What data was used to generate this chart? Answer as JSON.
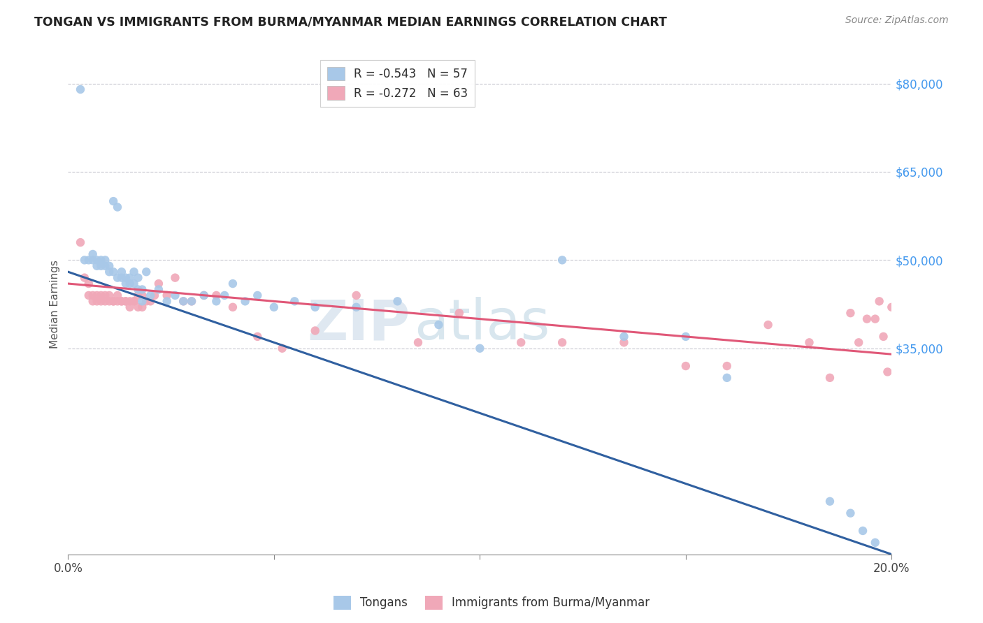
{
  "title": "TONGAN VS IMMIGRANTS FROM BURMA/MYANMAR MEDIAN EARNINGS CORRELATION CHART",
  "source": "Source: ZipAtlas.com",
  "ylabel": "Median Earnings",
  "xlim": [
    0.0,
    0.2
  ],
  "ylim": [
    0,
    85000
  ],
  "yticks": [
    35000,
    50000,
    65000,
    80000
  ],
  "ytick_labels": [
    "$35,000",
    "$50,000",
    "$65,000",
    "$80,000"
  ],
  "xticks": [
    0.0,
    0.05,
    0.1,
    0.15,
    0.2
  ],
  "xtick_labels": [
    "0.0%",
    "",
    "",
    "",
    "20.0%"
  ],
  "background_color": "#ffffff",
  "grid_color": "#c8c8d0",
  "blue_color": "#a8c8e8",
  "pink_color": "#f0a8b8",
  "blue_line_color": "#3060a0",
  "pink_line_color": "#e05878",
  "legend_label_blue": "R = -0.543   N = 57",
  "legend_label_pink": "R = -0.272   N = 63",
  "legend_bottom_blue": "Tongans",
  "legend_bottom_pink": "Immigrants from Burma/Myanmar",
  "watermark_zip": "ZIP",
  "watermark_atlas": "atlas",
  "blue_trend_x0": 0.0,
  "blue_trend_y0": 48000,
  "blue_trend_x1": 0.2,
  "blue_trend_y1": 0,
  "pink_trend_x0": 0.0,
  "pink_trend_y0": 46000,
  "pink_trend_x1": 0.2,
  "pink_trend_y1": 34000,
  "blue_scatter_x": [
    0.003,
    0.004,
    0.005,
    0.006,
    0.006,
    0.007,
    0.007,
    0.008,
    0.008,
    0.009,
    0.009,
    0.01,
    0.01,
    0.011,
    0.011,
    0.012,
    0.012,
    0.013,
    0.013,
    0.014,
    0.014,
    0.015,
    0.015,
    0.016,
    0.016,
    0.017,
    0.017,
    0.018,
    0.018,
    0.019,
    0.02,
    0.022,
    0.024,
    0.026,
    0.028,
    0.03,
    0.033,
    0.036,
    0.038,
    0.04,
    0.043,
    0.046,
    0.05,
    0.055,
    0.06,
    0.07,
    0.08,
    0.09,
    0.1,
    0.12,
    0.135,
    0.15,
    0.16,
    0.185,
    0.19,
    0.193,
    0.196
  ],
  "blue_scatter_y": [
    79000,
    50000,
    50000,
    51000,
    50000,
    50000,
    49000,
    50000,
    49000,
    50000,
    49000,
    49000,
    48000,
    48000,
    60000,
    59000,
    47000,
    47000,
    48000,
    47000,
    46000,
    46000,
    47000,
    46000,
    48000,
    45000,
    47000,
    43000,
    45000,
    48000,
    44000,
    45000,
    43000,
    44000,
    43000,
    43000,
    44000,
    43000,
    44000,
    46000,
    43000,
    44000,
    42000,
    43000,
    42000,
    42000,
    43000,
    39000,
    35000,
    50000,
    37000,
    37000,
    30000,
    9000,
    7000,
    4000,
    2000
  ],
  "pink_scatter_x": [
    0.003,
    0.004,
    0.005,
    0.005,
    0.006,
    0.006,
    0.007,
    0.007,
    0.008,
    0.008,
    0.009,
    0.009,
    0.01,
    0.01,
    0.011,
    0.011,
    0.012,
    0.012,
    0.013,
    0.013,
    0.014,
    0.014,
    0.015,
    0.015,
    0.016,
    0.016,
    0.017,
    0.017,
    0.018,
    0.018,
    0.019,
    0.02,
    0.021,
    0.022,
    0.024,
    0.026,
    0.028,
    0.03,
    0.033,
    0.036,
    0.04,
    0.046,
    0.052,
    0.06,
    0.07,
    0.085,
    0.095,
    0.11,
    0.12,
    0.135,
    0.15,
    0.16,
    0.17,
    0.18,
    0.185,
    0.19,
    0.192,
    0.194,
    0.196,
    0.197,
    0.198,
    0.199,
    0.2
  ],
  "pink_scatter_y": [
    53000,
    47000,
    46000,
    44000,
    44000,
    43000,
    44000,
    43000,
    44000,
    43000,
    43000,
    44000,
    43000,
    44000,
    43000,
    43000,
    44000,
    43000,
    43000,
    43000,
    43000,
    43000,
    43000,
    42000,
    43000,
    43000,
    42000,
    44000,
    42000,
    44000,
    43000,
    43000,
    44000,
    46000,
    44000,
    47000,
    43000,
    43000,
    44000,
    44000,
    42000,
    37000,
    35000,
    38000,
    44000,
    36000,
    41000,
    36000,
    36000,
    36000,
    32000,
    32000,
    39000,
    36000,
    30000,
    41000,
    36000,
    40000,
    40000,
    43000,
    37000,
    31000,
    42000
  ]
}
